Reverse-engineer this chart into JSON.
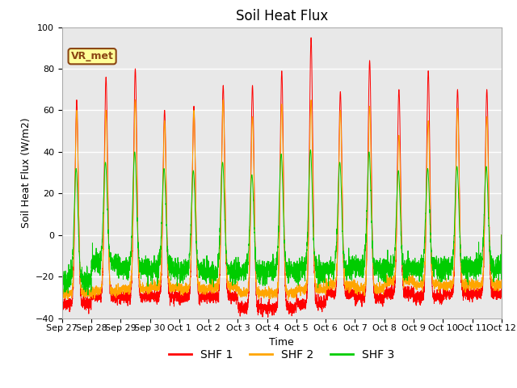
{
  "title": "Soil Heat Flux",
  "xlabel": "Time",
  "ylabel": "Soil Heat Flux (W/m2)",
  "ylim": [
    -40,
    100
  ],
  "yticks": [
    -40,
    -20,
    0,
    20,
    40,
    60,
    80,
    100
  ],
  "xtick_labels": [
    "Sep 27",
    "Sep 28",
    "Sep 29",
    "Sep 30",
    "Oct 1",
    "Oct 2",
    "Oct 3",
    "Oct 4",
    "Oct 5",
    "Oct 6",
    "Oct 7",
    "Oct 8",
    "Oct 9",
    "Oct 10",
    "Oct 11",
    "Oct 12"
  ],
  "series_colors": [
    "#ff0000",
    "#ffa500",
    "#00cc00"
  ],
  "series_names": [
    "SHF 1",
    "SHF 2",
    "SHF 3"
  ],
  "annotation_text": "VR_met",
  "bg_color": "#e8e8e8",
  "title_fontsize": 12,
  "axis_fontsize": 9,
  "legend_fontsize": 10,
  "shf1_peaks": [
    65,
    76,
    80,
    60,
    62,
    72,
    72,
    79,
    95,
    69,
    84,
    70,
    79,
    70,
    70
  ],
  "shf2_peaks": [
    60,
    60,
    65,
    55,
    60,
    65,
    57,
    63,
    65,
    60,
    62,
    48,
    55,
    61,
    57
  ],
  "shf3_peaks": [
    32,
    35,
    40,
    32,
    31,
    35,
    29,
    39,
    41,
    35,
    40,
    31,
    32,
    33,
    33
  ],
  "shf1_troughs": [
    -33,
    -30,
    -30,
    -30,
    -30,
    -30,
    -35,
    -35,
    -33,
    -28,
    -30,
    -28,
    -30,
    -28,
    -28
  ],
  "shf2_troughs": [
    -28,
    -27,
    -26,
    -25,
    -26,
    -25,
    -28,
    -28,
    -26,
    -24,
    -26,
    -22,
    -24,
    -24,
    -24
  ],
  "shf3_troughs": [
    -22,
    -14,
    -16,
    -16,
    -17,
    -18,
    -18,
    -17,
    -17,
    -16,
    -16,
    -16,
    -16,
    -16,
    -16
  ]
}
